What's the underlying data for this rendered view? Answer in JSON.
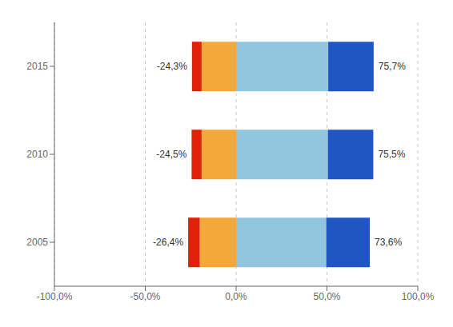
{
  "chart_data": {
    "type": "bar",
    "orientation": "horizontal",
    "stacked": true,
    "grid": true,
    "categories": [
      "2015",
      "2010",
      "2005"
    ],
    "series": [
      {
        "color": "#e0210a",
        "values": [
          -5.3,
          -5.5,
          -6.4
        ]
      },
      {
        "color": "#f4a83a",
        "values": [
          -19.0,
          -19.0,
          -20.0
        ]
      },
      {
        "color": "#92c5de",
        "values": [
          50.7,
          50.5,
          49.6
        ]
      },
      {
        "color": "#2255c4",
        "values": [
          25.0,
          25.0,
          24.0
        ]
      }
    ],
    "annotations": [
      {
        "category": "2015",
        "x": -24.3,
        "text": "-24,3%"
      },
      {
        "category": "2010",
        "x": -24.5,
        "text": "-24,5%"
      },
      {
        "category": "2005",
        "x": -26.4,
        "text": "-26,4%"
      },
      {
        "category": "2015",
        "x": 75.7,
        "text": "75,7%"
      },
      {
        "category": "2010",
        "x": 75.5,
        "text": "75,5%"
      },
      {
        "category": "2005",
        "x": 73.6,
        "text": "73,6%"
      }
    ],
    "xlim": [
      -100,
      100
    ],
    "xticks": [
      {
        "value": -100,
        "label": "-100,0%"
      },
      {
        "value": -50,
        "label": "-50,0%"
      },
      {
        "value": 0,
        "label": "0,0%"
      },
      {
        "value": 50,
        "label": "50,0%"
      },
      {
        "value": 100,
        "label": "100,0%"
      }
    ]
  }
}
